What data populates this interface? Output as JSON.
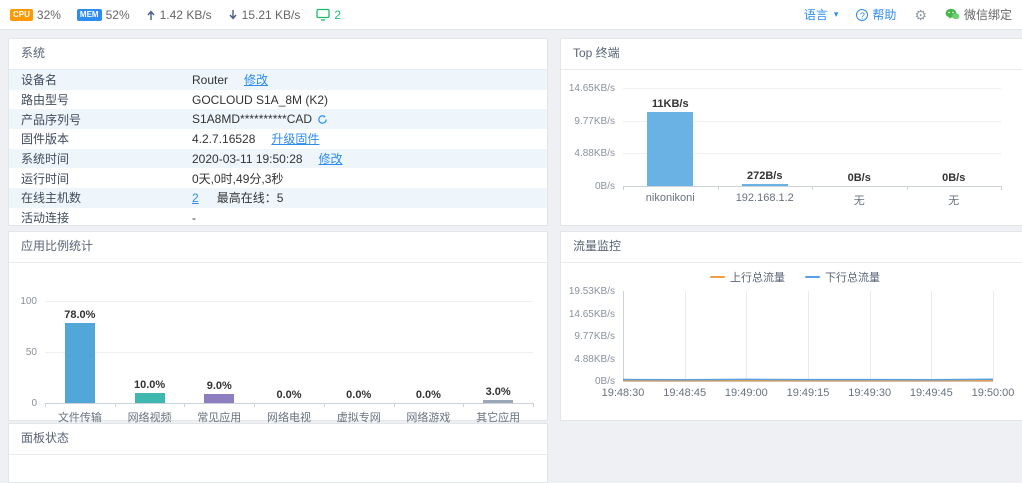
{
  "topbar": {
    "cpu_badge": "CPU",
    "cpu_value": "32%",
    "mem_badge": "MEM",
    "mem_value": "52%",
    "upload_rate": "1.42 KB/s",
    "download_rate": "15.21 KB/s",
    "online_count": "2",
    "language_label": "语言",
    "help_label": "帮助",
    "wechat_label": "微信绑定"
  },
  "panels": {
    "system": {
      "title": "系统"
    },
    "top_terminals": {
      "title": "Top 终端"
    },
    "app_ratio": {
      "title": "应用比例统计"
    },
    "traffic": {
      "title": "流量监控"
    },
    "panel_status": {
      "title": "面板状态"
    }
  },
  "system": {
    "rows": [
      {
        "label": "设备名",
        "value": "Router",
        "action": "修改"
      },
      {
        "label": "路由型号",
        "value": "GOCLOUD S1A_8M (K2)"
      },
      {
        "label": "产品序列号",
        "value": "S1A8MD**********CAD",
        "icon": "refresh"
      },
      {
        "label": "固件版本",
        "value": "4.2.7.16528",
        "action": "升级固件"
      },
      {
        "label": "系统时间",
        "value": "2020-03-11 19:50:28",
        "action": "修改"
      },
      {
        "label": "运行时间",
        "value": "0天,0时,49分,3秒"
      },
      {
        "label": "在线主机数",
        "value": "2",
        "value_link": true,
        "extra": "最高在线：5"
      },
      {
        "label": "活动连接",
        "value": "-"
      }
    ]
  },
  "chart_data": [
    {
      "id": "app_ratio",
      "type": "bar",
      "title": "应用比例统计",
      "categories": [
        "文件传输",
        "网络视频",
        "常见应用",
        "网络电视",
        "虚拟专网",
        "网络游戏",
        "其它应用"
      ],
      "values": [
        78.0,
        10.0,
        9.0,
        0.0,
        0.0,
        0.0,
        3.0
      ],
      "value_labels": [
        "78.0%",
        "10.0%",
        "9.0%",
        "0.0%",
        "0.0%",
        "0.0%",
        "3.0%"
      ],
      "bar_colors": [
        "#51a7d7",
        "#3fb8af",
        "#8d7ebf",
        "#51a7d7",
        "#3fb8af",
        "#8d7ebf",
        "#9aa7b4"
      ],
      "ylim": [
        0,
        100
      ],
      "yticks": [
        0,
        50,
        100
      ],
      "ytick_labels": [
        "0",
        "50",
        "100"
      ],
      "xlabel": "",
      "ylabel": ""
    },
    {
      "id": "top_terminals",
      "type": "bar",
      "title": "Top 终端",
      "categories": [
        "nikonikoni",
        "192.168.1.2",
        "无",
        "无"
      ],
      "values": [
        11264,
        272,
        0,
        0
      ],
      "value_labels": [
        "11KB/s",
        "272B/s",
        "0B/s",
        "0B/s"
      ],
      "bar_colors": [
        "#6ab2e3",
        "#6ab2e3",
        "#6ab2e3",
        "#6ab2e3"
      ],
      "ylim": [
        0,
        15000
      ],
      "yticks": [
        0,
        5000,
        10000,
        15000
      ],
      "ytick_labels": [
        "0B/s",
        "4.88KB/s",
        "9.77KB/s",
        "14.65KB/s"
      ],
      "xlabel": "",
      "ylabel": ""
    },
    {
      "id": "traffic",
      "type": "line",
      "title": "流量监控",
      "x_labels": [
        "19:48:30",
        "19:48:45",
        "19:49:00",
        "19:49:15",
        "19:49:30",
        "19:49:45",
        "19:50:00"
      ],
      "ylim": [
        0,
        20000
      ],
      "ytick_labels": [
        "0B/s",
        "4.88KB/s",
        "9.77KB/s",
        "14.65KB/s",
        "19.53KB/s"
      ],
      "legend_position": "top",
      "grid": "vertical",
      "series": [
        {
          "name": "上行总流量",
          "color": "#ef9f43",
          "values": [
            80,
            70,
            90,
            75,
            85,
            80,
            95
          ]
        },
        {
          "name": "下行总流量",
          "color": "#57a0e5",
          "values": [
            320,
            280,
            350,
            300,
            310,
            290,
            380
          ]
        }
      ]
    }
  ]
}
